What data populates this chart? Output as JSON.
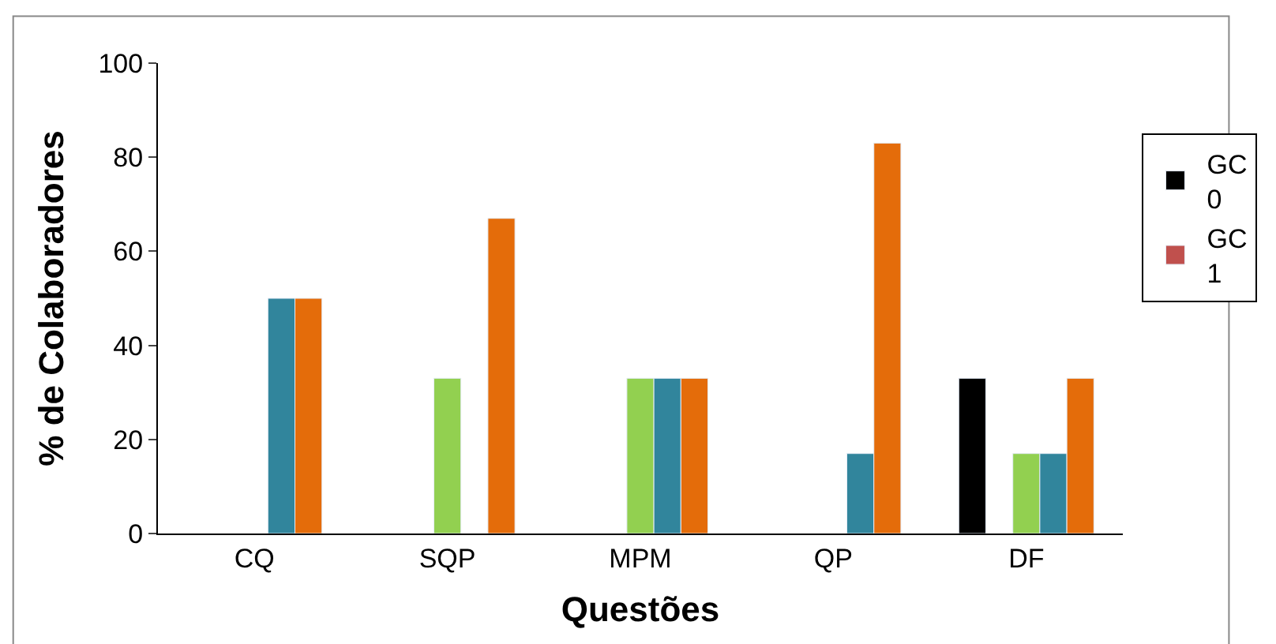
{
  "chart_data": {
    "type": "bar",
    "xlabel": "Questões",
    "ylabel": "% de Colaboradores",
    "categories": [
      "CQ",
      "SQP",
      "MPM",
      "QP",
      "DF"
    ],
    "series": [
      {
        "name": "GC 0",
        "color": "#000000",
        "values": [
          null,
          null,
          null,
          null,
          33
        ]
      },
      {
        "name": "GC 1",
        "color": "#c0504d",
        "values": [
          null,
          null,
          null,
          null,
          null
        ]
      },
      {
        "color": "#92d050",
        "values": [
          null,
          33,
          33,
          null,
          17
        ]
      },
      {
        "color": "#31859c",
        "values": [
          50,
          null,
          33,
          17,
          17
        ]
      },
      {
        "color": "#e46c0a",
        "values": [
          50,
          67,
          33,
          83,
          33
        ]
      }
    ],
    "ylim": [
      0,
      100
    ],
    "yticks": [
      0,
      20,
      40,
      60,
      80,
      100
    ],
    "legend": "right"
  }
}
